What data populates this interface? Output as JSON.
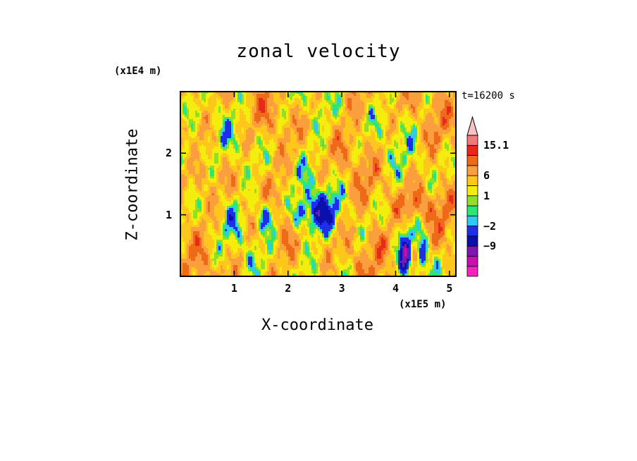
{
  "chart_data": {
    "type": "heatmap",
    "title": "zonal velocity",
    "xlabel": "X-coordinate",
    "ylabel": "Z-coordinate",
    "x_unit_label": "(x1E5 m)",
    "y_unit_label": "(x1E4 m)",
    "time_label": "t=16200 s",
    "xlim": [
      0,
      5.12
    ],
    "ylim": [
      0,
      3.0
    ],
    "x_ticks": [
      1,
      2,
      3,
      4,
      5
    ],
    "x_tick_labels": [
      "1",
      "2",
      "3",
      "4",
      "5"
    ],
    "y_ticks": [
      1,
      2
    ],
    "y_tick_labels": [
      "1",
      "2"
    ],
    "colorbar": {
      "levels": [
        -15.6,
        -12.3,
        -9,
        -5.5,
        -2,
        -1,
        0,
        1,
        3.5,
        6,
        9,
        12,
        15.1
      ],
      "colors": [
        "#ff1fbf",
        "#c80faf",
        "#7f16af",
        "#0b10ad",
        "#1e2eeb",
        "#31c9f2",
        "#2de67a",
        "#8fe027",
        "#f4ee0e",
        "#ffc71b",
        "#fb9f3e",
        "#ef6a17",
        "#e7291d",
        "#f3787a",
        "#f8c2c4"
      ],
      "labels": [
        "15.1",
        "6",
        "1",
        "−2",
        "−9"
      ],
      "label_values": [
        15.1,
        6,
        1,
        -2,
        -9
      ],
      "extend": "max"
    },
    "field_pattern": {
      "dominant": "yellow-orange",
      "notes": "turbulent mix; blue/navy negative streaks concentrated near x=1.2-2.8 at z=0.7-1.3 and near x=3.9-4.6 at z=0-0.7; orange positive patches near x=4.3 z=1.2 and x=3.8 z=0.5"
    }
  }
}
